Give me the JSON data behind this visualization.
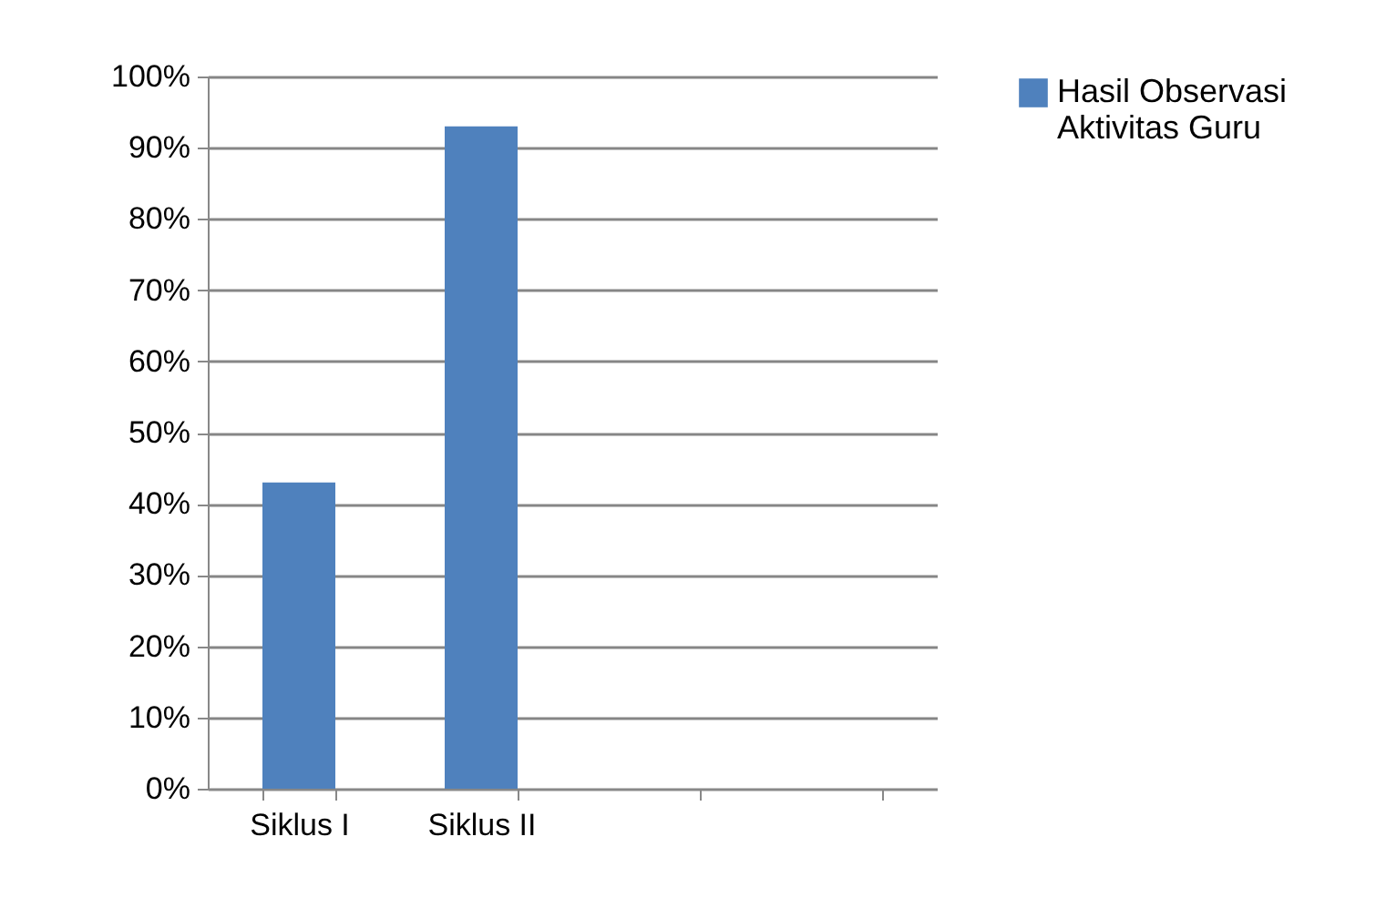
{
  "chart_data": {
    "type": "bar",
    "categories": [
      "Siklus I",
      "Siklus II",
      null,
      null
    ],
    "series": [
      {
        "name": "Hasil Observasi Aktivitas Guru",
        "color": "#4f81bd",
        "values": [
          43,
          93,
          null,
          null
        ]
      }
    ],
    "ylim": [
      0,
      100
    ],
    "yticks": [
      {
        "value": 0,
        "label": "0%"
      },
      {
        "value": 10,
        "label": "10%"
      },
      {
        "value": 20,
        "label": "20%"
      },
      {
        "value": 30,
        "label": "30%"
      },
      {
        "value": 40,
        "label": "40%"
      },
      {
        "value": 50,
        "label": "50%"
      },
      {
        "value": 60,
        "label": "60%"
      },
      {
        "value": 70,
        "label": "70%"
      },
      {
        "value": 80,
        "label": "80%"
      },
      {
        "value": 90,
        "label": "90%"
      },
      {
        "value": 100,
        "label": "100%"
      }
    ],
    "grid": "y",
    "legend": "right"
  }
}
